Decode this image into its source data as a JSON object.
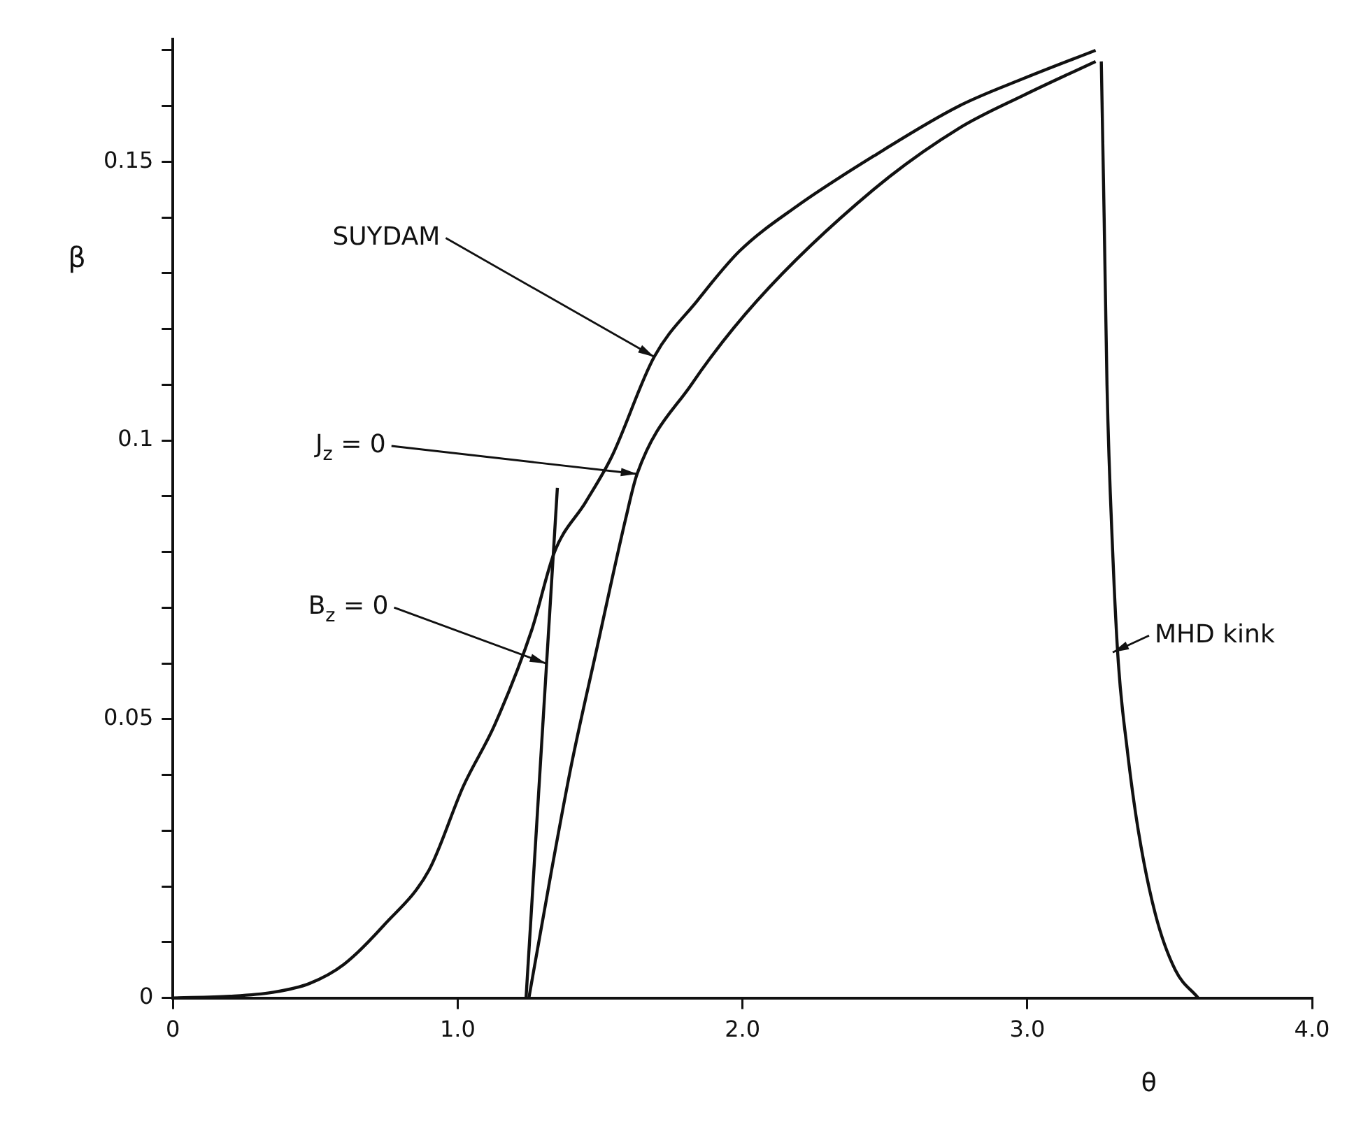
{
  "chart_data": {
    "type": "line",
    "xlabel": "θ",
    "ylabel": "β",
    "xlim": [
      0,
      4.0
    ],
    "ylim": [
      0,
      0.172
    ],
    "xticks": [
      0,
      {
        "value": 1,
        "label": "1.0"
      },
      {
        "value": 2,
        "label": "2.0"
      },
      {
        "value": 3,
        "label": "3.0"
      },
      {
        "value": 4,
        "label": "4.0"
      }
    ],
    "yticks": [
      0,
      {
        "value": 0.01,
        "label": null
      },
      {
        "value": 0.02,
        "label": null
      },
      {
        "value": 0.03,
        "label": null
      },
      {
        "value": 0.04,
        "label": null
      },
      0.05,
      {
        "value": 0.06,
        "label": null
      },
      {
        "value": 0.07,
        "label": null
      },
      {
        "value": 0.08,
        "label": null
      },
      {
        "value": 0.09,
        "label": null
      },
      0.1,
      {
        "value": 0.11,
        "label": null
      },
      {
        "value": 0.12,
        "label": null
      },
      {
        "value": 0.13,
        "label": null
      },
      {
        "value": 0.14,
        "label": null
      },
      0.15,
      {
        "value": 0.16,
        "label": null
      },
      {
        "value": 0.17,
        "label": null
      }
    ],
    "grid": false,
    "legend": false,
    "marker": "none",
    "line_style": "solid",
    "series": [
      {
        "color": "#111111",
        "x": [
          0,
          0.2,
          0.35,
          0.48,
          0.6,
          0.74,
          0.9,
          1.02,
          1.13,
          1.26,
          1.34,
          1.45,
          1.54,
          1.69,
          1.84,
          1.99,
          2.19,
          2.46,
          2.76,
          2.99,
          3.24
        ],
        "values": [
          0,
          0.0003,
          0.001,
          0.0026,
          0.006,
          0.013,
          0.023,
          0.038,
          0.049,
          0.066,
          0.08,
          0.089,
          0.097,
          0.115,
          0.125,
          0.134,
          0.142,
          0.151,
          0.16,
          0.165,
          0.17
        ]
      },
      {
        "color": "#111111",
        "x": [
          1.25,
          1.33,
          1.4,
          1.49,
          1.59,
          1.63,
          1.82,
          2.05,
          2.46,
          2.76,
          2.99,
          3.24
        ],
        "values": [
          0,
          0.023,
          0.042,
          0.063,
          0.086,
          0.094,
          0.11,
          0.125,
          0.145,
          0.156,
          0.162,
          0.168
        ]
      },
      {
        "color": "#111111",
        "x": [
          1.24,
          1.35
        ],
        "values": [
          0,
          0.0915
        ]
      },
      {
        "color": "#111111",
        "x": [
          3.6,
          3.52,
          3.45,
          3.39,
          3.35,
          3.32,
          3.3,
          3.28,
          3.27,
          3.26
        ],
        "values": [
          0,
          0.005,
          0.015,
          0.03,
          0.045,
          0.06,
          0.08,
          0.11,
          0.14,
          0.168
        ]
      }
    ],
    "annotations": [
      {
        "text": "SUYDAM",
        "x": 1.69,
        "y": 0.115
      },
      {
        "text": "J$_{z}$ = 0",
        "x": 1.63,
        "y": 0.094
      },
      {
        "text": "B$_{z}$ = 0",
        "x": 1.31,
        "y": 0.06
      },
      {
        "text": "MHD kink",
        "x": 3.3,
        "y": 0.062
      }
    ]
  }
}
